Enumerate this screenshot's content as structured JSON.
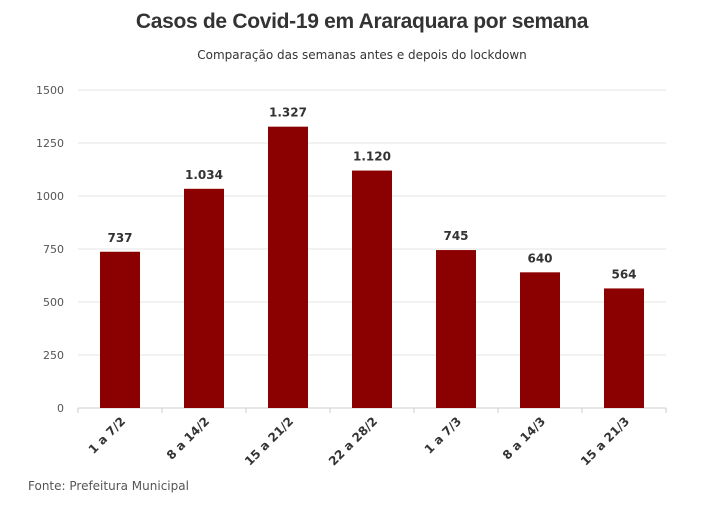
{
  "chart_data": {
    "type": "bar",
    "title": "Casos de Covid-19 em Araraquara por semana",
    "subtitle": "Comparação das semanas antes e depois do lockdown",
    "categories": [
      "1 a 7/2",
      "8 a 14/2",
      "15 a 21/2",
      "22 a 28/2",
      "1 a 7/3",
      "8 a 14/3",
      "15 a 21/3"
    ],
    "values": [
      737,
      1034,
      1327,
      1120,
      745,
      640,
      564
    ],
    "value_labels": [
      "737",
      "1.034",
      "1.327",
      "1.120",
      "745",
      "640",
      "564"
    ],
    "y_ticks": [
      0,
      250,
      500,
      750,
      1000,
      1250,
      1500
    ],
    "y_tick_labels": [
      "0",
      "250",
      "500",
      "750",
      "1000",
      "1250",
      "1500"
    ],
    "ylim": [
      0,
      1500
    ],
    "xlabel": "",
    "ylabel": "",
    "grid": true,
    "legend": "none",
    "source": "Fonte: Prefeitura Municipal"
  },
  "colors": {
    "bar": "#8b0000",
    "grid": "#e6e6e6",
    "axis": "#cccccc"
  }
}
